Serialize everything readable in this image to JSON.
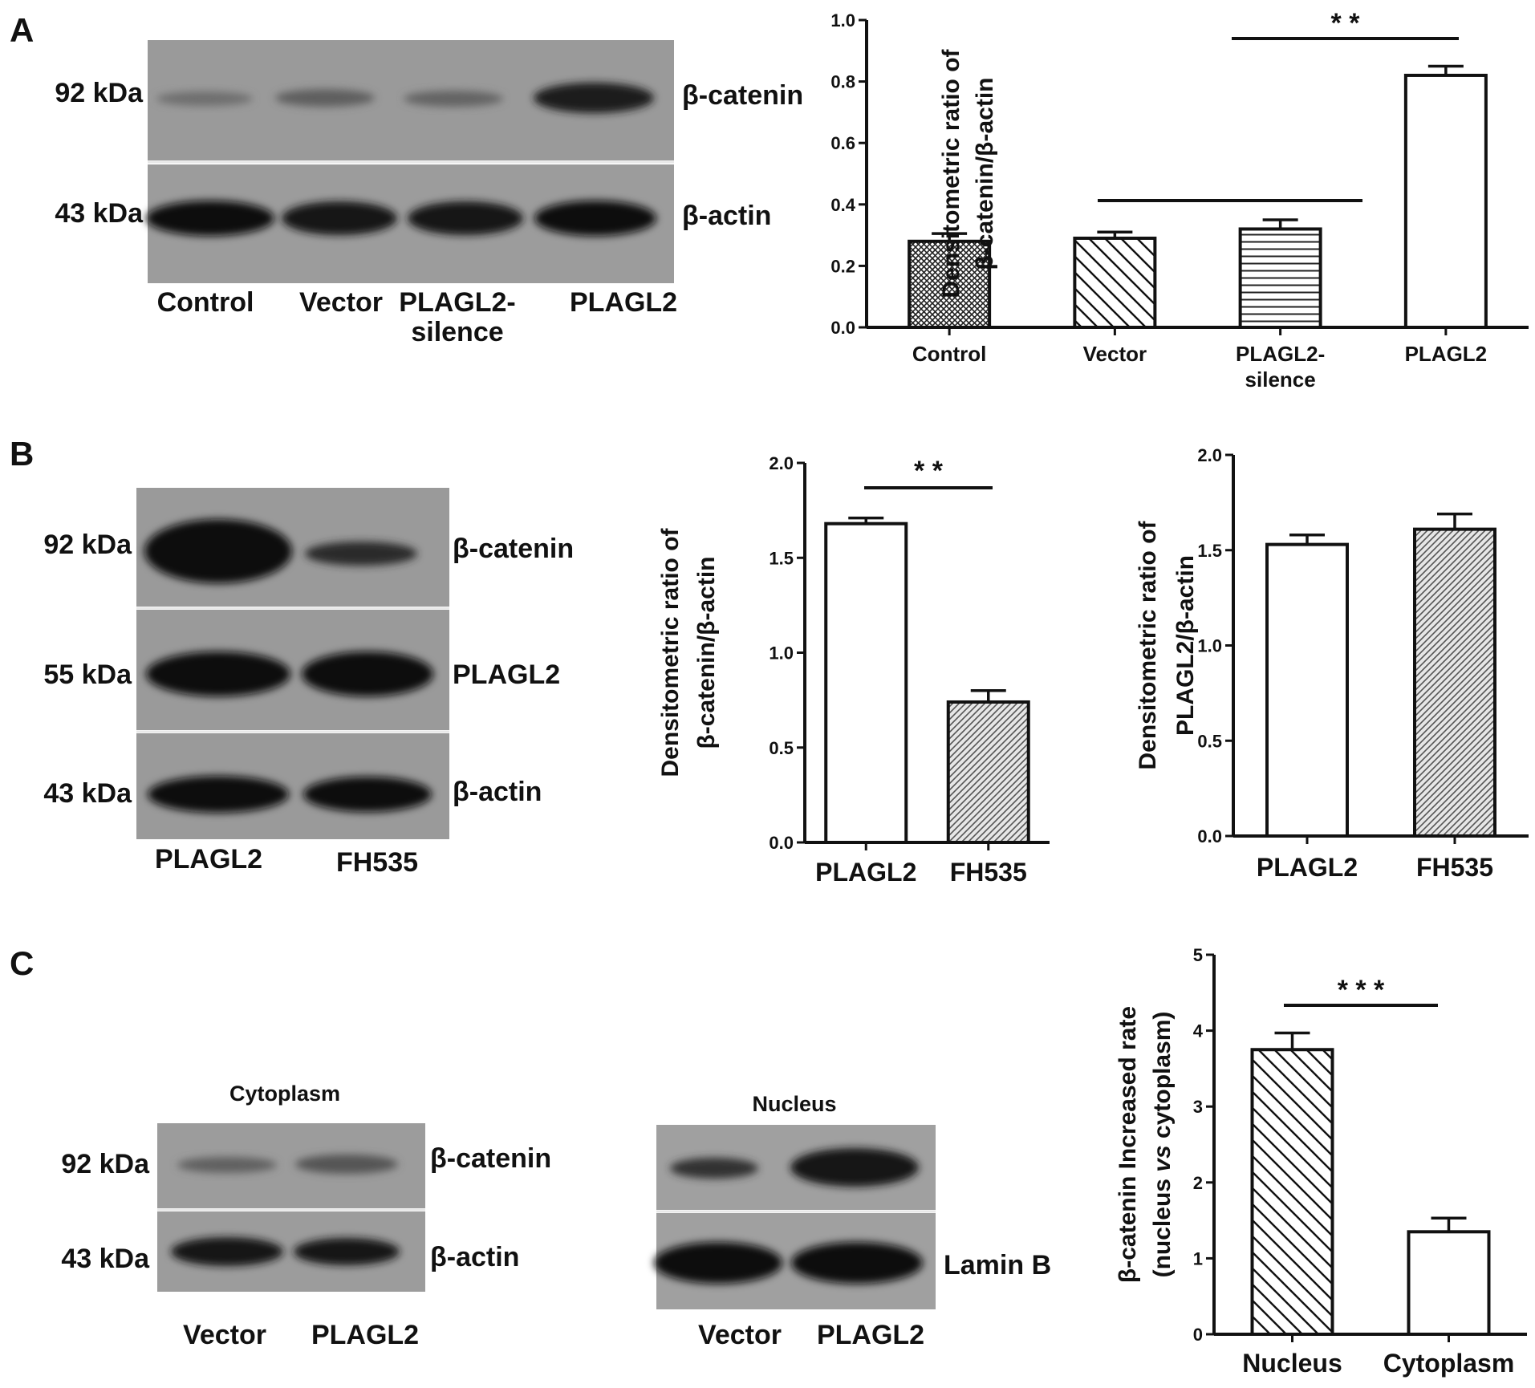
{
  "panels": {
    "A": {
      "letter": "A",
      "blot": {
        "markers": [
          "92 kDa",
          "43 kDa"
        ],
        "proteins": [
          "β-catenin",
          "β-actin"
        ],
        "lane_labels": [
          "Control",
          "Vector",
          "PLAGL2-",
          "PLAGL2"
        ],
        "lane_label_second_line": "silence"
      }
    },
    "B": {
      "letter": "B",
      "blot": {
        "markers": [
          "92 kDa",
          "55 kDa",
          "43 kDa"
        ],
        "proteins": [
          "β-catenin",
          "PLAGL2",
          "β-actin"
        ],
        "lane_labels": [
          "PLAGL2",
          "FH535"
        ]
      }
    },
    "C": {
      "letter": "C",
      "cyto_blot": {
        "title": "Cytoplasm",
        "markers": [
          "92 kDa",
          "43 kDa"
        ],
        "proteins": [
          "β-catenin",
          "β-actin"
        ],
        "lane_labels": [
          "Vector",
          "PLAGL2"
        ]
      },
      "nuc_blot": {
        "title": "Nucleus",
        "proteins": [
          "Lamin B"
        ],
        "lane_labels": [
          "Vector",
          "PLAGL2"
        ]
      }
    }
  },
  "chart_data": [
    {
      "id": "A",
      "type": "bar",
      "categories": [
        "Control",
        "Vector",
        "PLAGL2-silence",
        "PLAGL2"
      ],
      "category_label_lines": [
        [
          "Control"
        ],
        [
          "Vector"
        ],
        [
          "PLAGL2-",
          "silence"
        ],
        [
          "PLAGL2"
        ]
      ],
      "values": [
        0.28,
        0.29,
        0.32,
        0.82
      ],
      "errors": [
        0.025,
        0.02,
        0.03,
        0.03
      ],
      "patterns": [
        "crosshatch",
        "diag-back",
        "horizontal",
        "none"
      ],
      "ylabel_lines": [
        "Densitometric ratio of",
        "β-catenin/β-actin"
      ],
      "ylim": [
        0,
        1.0
      ],
      "yticks": [
        "0.0",
        "0.2",
        "0.4",
        "0.6",
        "0.8",
        "1.0"
      ],
      "significance": "* *",
      "grid": false
    },
    {
      "id": "B1",
      "type": "bar",
      "categories": [
        "PLAGL2",
        "FH535"
      ],
      "category_label_lines": [
        [
          "PLAGL2"
        ],
        [
          "FH535"
        ]
      ],
      "values": [
        1.68,
        0.74
      ],
      "errors": [
        0.03,
        0.06
      ],
      "patterns": [
        "none",
        "diag-fine"
      ],
      "ylabel_lines": [
        "Densitometric ratio of",
        "β-catenin/β-actin"
      ],
      "ylim": [
        0,
        2.0
      ],
      "yticks": [
        "0.0",
        "0.5",
        "1.0",
        "1.5",
        "2.0"
      ],
      "significance": "* *",
      "grid": false
    },
    {
      "id": "B2",
      "type": "bar",
      "categories": [
        "PLAGL2",
        "FH535"
      ],
      "category_label_lines": [
        [
          "PLAGL2"
        ],
        [
          "FH535"
        ]
      ],
      "values": [
        1.53,
        1.61
      ],
      "errors": [
        0.05,
        0.08
      ],
      "patterns": [
        "none",
        "diag-fine"
      ],
      "ylabel_lines": [
        "Densitometric ratio of",
        "PLAGL2/β-actin"
      ],
      "ylim": [
        0,
        2.0
      ],
      "yticks": [
        "0.0",
        "0.5",
        "1.0",
        "1.5",
        "2.0"
      ],
      "significance": "",
      "grid": false
    },
    {
      "id": "C",
      "type": "bar",
      "categories": [
        "Nucleus",
        "Cytoplasm"
      ],
      "category_label_lines": [
        [
          "Nucleus"
        ],
        [
          "Cytoplasm"
        ]
      ],
      "values": [
        3.75,
        1.35
      ],
      "errors": [
        0.22,
        0.18
      ],
      "patterns": [
        "diag-back",
        "none"
      ],
      "ylabel_lines": [
        "β-catenin Increased rate",
        "(nucleus vs cytoplasm)"
      ],
      "ylim": [
        0,
        5
      ],
      "yticks": [
        "0",
        "1",
        "2",
        "3",
        "4",
        "5"
      ],
      "significance": "* * *",
      "grid": false
    }
  ]
}
